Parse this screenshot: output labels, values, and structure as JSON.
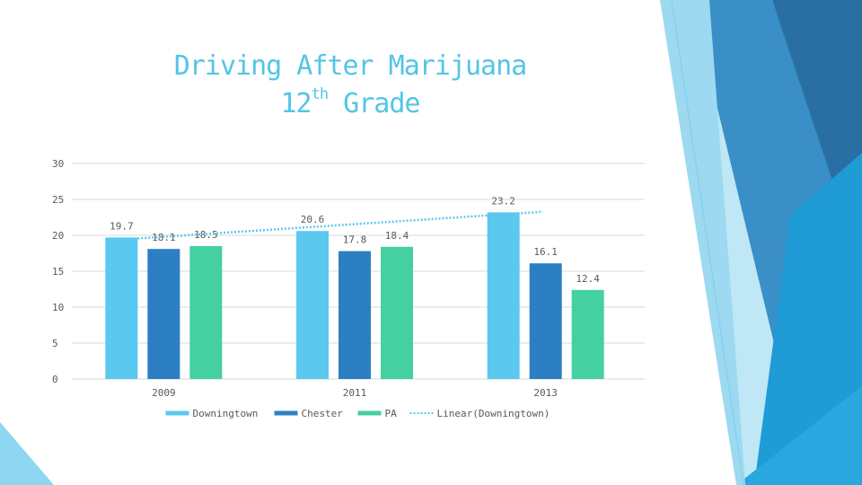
{
  "slide": {
    "title_line1": "Driving After Marijuana",
    "title_line2_number": "12",
    "title_line2_sup": "th",
    "title_line2_rest": " Grade"
  },
  "chart_data": {
    "type": "bar",
    "title": "Driving After Marijuana 12th Grade",
    "categories": [
      "2009",
      "2011",
      "2013"
    ],
    "series": [
      {
        "name": "Downingtown",
        "values": [
          19.7,
          20.6,
          23.2
        ],
        "color": "#5bc8ef"
      },
      {
        "name": "Chester",
        "values": [
          18.1,
          17.8,
          16.1
        ],
        "color": "#2c7fc3"
      },
      {
        "name": "PA",
        "values": [
          18.5,
          18.4,
          12.4
        ],
        "color": "#44d0a0"
      }
    ],
    "trendline": {
      "name": "Linear(Downingtown)",
      "of_series": "Downingtown",
      "style": "dotted",
      "color": "#5bc8ef"
    },
    "ylim": [
      0,
      30
    ],
    "yticks": [
      0,
      5,
      10,
      15,
      20,
      25,
      30
    ],
    "grid": true,
    "legend_position": "bottom",
    "gridline_color": "#d9d9d9"
  },
  "theme": {
    "accent_light": "#53c5e6",
    "accent_dark": "#2a6fa3"
  }
}
